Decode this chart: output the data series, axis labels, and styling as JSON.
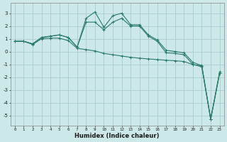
{
  "x": [
    0,
    1,
    2,
    3,
    4,
    5,
    6,
    7,
    8,
    9,
    10,
    11,
    12,
    13,
    14,
    15,
    16,
    17,
    18,
    19,
    20,
    21,
    22,
    23
  ],
  "line1": [
    0.8,
    0.8,
    0.6,
    1.1,
    1.2,
    1.3,
    1.1,
    0.35,
    2.6,
    3.1,
    1.9,
    2.8,
    3.0,
    2.1,
    2.1,
    1.3,
    0.9,
    0.1,
    0.0,
    -0.1,
    -0.85,
    -1.1,
    -5.3,
    -1.6
  ],
  "line2": [
    0.8,
    0.8,
    0.6,
    1.1,
    1.2,
    1.3,
    1.1,
    0.35,
    2.3,
    2.3,
    1.7,
    2.3,
    2.6,
    2.0,
    2.0,
    1.2,
    0.8,
    -0.1,
    -0.15,
    -0.25,
    -1.0,
    -1.2,
    -5.3,
    -1.7
  ],
  "line3": [
    0.8,
    0.8,
    0.55,
    1.0,
    1.05,
    1.05,
    0.85,
    0.25,
    0.15,
    0.05,
    -0.15,
    -0.25,
    -0.35,
    -0.45,
    -0.52,
    -0.58,
    -0.63,
    -0.68,
    -0.72,
    -0.78,
    -1.02,
    -1.12,
    -5.3,
    -1.7
  ],
  "bg_color": "#cce8e8",
  "grid_color": "#aacccc",
  "line_color": "#2a7a6a",
  "xlabel": "Humidex (Indice chaleur)",
  "xlim": [
    -0.5,
    23.5
  ],
  "ylim": [
    -5.8,
    3.8
  ],
  "yticks": [
    -5,
    -4,
    -3,
    -2,
    -1,
    0,
    1,
    2,
    3
  ],
  "xticks": [
    0,
    1,
    2,
    3,
    4,
    5,
    6,
    7,
    8,
    9,
    10,
    11,
    12,
    13,
    14,
    15,
    16,
    17,
    18,
    19,
    20,
    21,
    22,
    23
  ]
}
